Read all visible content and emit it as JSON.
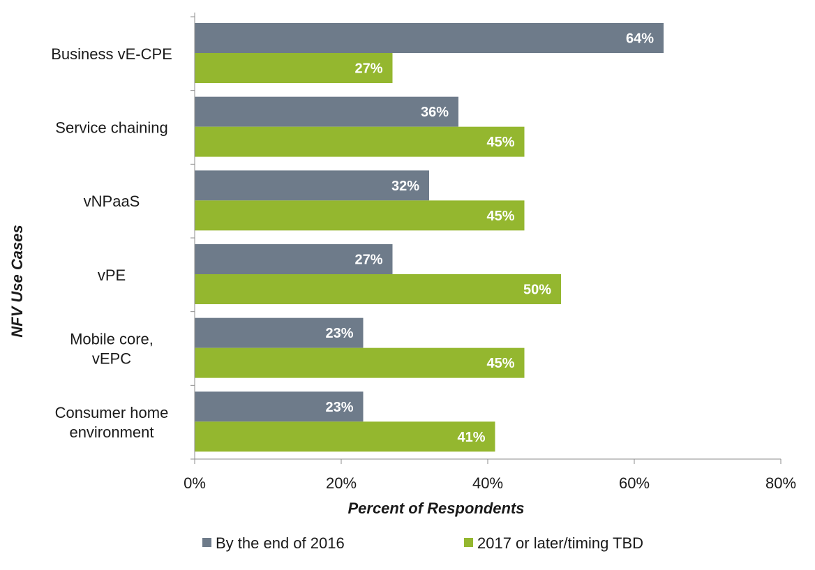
{
  "chart_data": {
    "type": "bar",
    "orientation": "horizontal",
    "categories": [
      [
        "Business vE-CPE"
      ],
      [
        "Service chaining"
      ],
      [
        "vNPaaS"
      ],
      [
        "vPE"
      ],
      [
        "Mobile core,",
        "vEPC"
      ],
      [
        "Consumer home",
        "environment"
      ]
    ],
    "series": [
      {
        "name": "By the end of 2016",
        "color": "#6e7b8a",
        "values": [
          64,
          36,
          32,
          27,
          23,
          23
        ]
      },
      {
        "name": "2017 or later/timing TBD",
        "color": "#94b72f",
        "values": [
          27,
          45,
          45,
          50,
          45,
          41
        ]
      }
    ],
    "value_suffix": "%",
    "xlabel": "Percent of Respondents",
    "ylabel": "NFV Use Cases",
    "xlim": [
      0,
      80
    ],
    "xticks": [
      0,
      20,
      40,
      60,
      80
    ],
    "xtick_labels": [
      "0%",
      "20%",
      "40%",
      "60%",
      "80%"
    ],
    "grid": false,
    "legend_position": "bottom"
  }
}
